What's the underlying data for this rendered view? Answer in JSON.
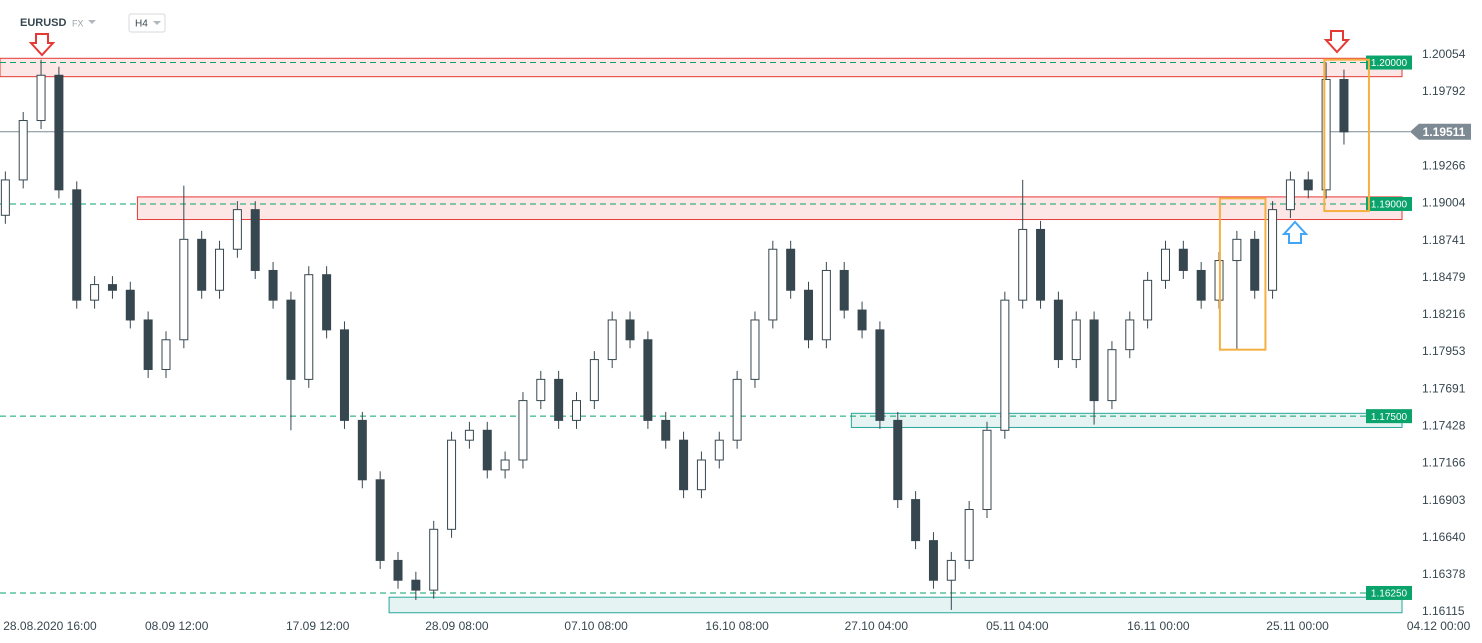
{
  "chart_data": {
    "type": "candlestick",
    "symbol": "EURUSD",
    "market": "FX",
    "timeframe": "H4",
    "open": [
      1.1892,
      1.1917,
      1.1959,
      1.1991,
      1.191,
      1.1832,
      1.1843,
      1.1839,
      1.1818,
      1.1783,
      1.1804,
      1.1875,
      1.1839,
      1.1868,
      1.1896,
      1.1853,
      1.1832,
      1.1776,
      1.185,
      1.1811,
      1.1747,
      1.1705,
      1.1648,
      1.1634,
      1.1627,
      1.167,
      1.1733,
      1.174,
      1.1712,
      1.1719,
      1.1761,
      1.1776,
      1.1747,
      1.1761,
      1.179,
      1.1818,
      1.1804,
      1.1747,
      1.1733,
      1.1698,
      1.1719,
      1.1733,
      1.1776,
      1.1818,
      1.1868,
      1.1839,
      1.1804,
      1.1853,
      1.1825,
      1.1811,
      1.1747,
      1.1691,
      1.1662,
      1.1634,
      1.1648,
      1.1684,
      1.174,
      1.1832,
      1.1882,
      1.1832,
      1.179,
      1.1818,
      1.1761,
      1.1797,
      1.1818,
      1.1846,
      1.1868,
      1.1853,
      1.1832,
      1.186,
      1.1875,
      1.1839,
      1.1896,
      1.1917,
      1.191,
      1.1988
    ],
    "high": [
      1.1923,
      1.1965,
      1.2002,
      1.1997,
      1.1916,
      1.1849,
      1.1849,
      1.1845,
      1.1824,
      1.181,
      1.1913,
      1.1881,
      1.1874,
      1.1902,
      1.1902,
      1.1859,
      1.1838,
      1.1856,
      1.1856,
      1.1817,
      1.1753,
      1.1711,
      1.1654,
      1.164,
      1.1676,
      1.1739,
      1.1746,
      1.1746,
      1.1725,
      1.1767,
      1.1782,
      1.1782,
      1.1767,
      1.1796,
      1.1824,
      1.1824,
      1.181,
      1.1753,
      1.1739,
      1.1725,
      1.1739,
      1.1782,
      1.1824,
      1.1874,
      1.1874,
      1.1845,
      1.1859,
      1.1859,
      1.1831,
      1.1817,
      1.1753,
      1.1697,
      1.1668,
      1.1654,
      1.169,
      1.1746,
      1.1838,
      1.1917,
      1.1888,
      1.1838,
      1.1824,
      1.1824,
      1.1803,
      1.1824,
      1.1852,
      1.1874,
      1.1874,
      1.1859,
      1.1866,
      1.1881,
      1.1881,
      1.1902,
      1.1923,
      1.1923,
      1.2,
      1.1995
    ],
    "low": [
      1.1886,
      1.1911,
      1.1953,
      1.1904,
      1.1826,
      1.1826,
      1.1833,
      1.1812,
      1.1777,
      1.1777,
      1.1798,
      1.1833,
      1.1833,
      1.1862,
      1.1847,
      1.1826,
      1.174,
      1.177,
      1.1805,
      1.1741,
      1.1699,
      1.1642,
      1.1628,
      1.162,
      1.1621,
      1.1664,
      1.1727,
      1.1706,
      1.1706,
      1.1713,
      1.1755,
      1.1741,
      1.1741,
      1.1755,
      1.1784,
      1.1798,
      1.1741,
      1.1727,
      1.1692,
      1.1692,
      1.1713,
      1.1727,
      1.177,
      1.1812,
      1.1833,
      1.1798,
      1.1798,
      1.1819,
      1.1805,
      1.1741,
      1.1685,
      1.1656,
      1.1628,
      1.1613,
      1.1642,
      1.1678,
      1.1734,
      1.1826,
      1.1826,
      1.1784,
      1.1784,
      1.1744,
      1.1755,
      1.1791,
      1.1812,
      1.184,
      1.1847,
      1.1826,
      1.1826,
      1.1797,
      1.1833,
      1.1833,
      1.189,
      1.1904,
      1.1904,
      1.1942
    ],
    "close": [
      1.1917,
      1.1959,
      1.1991,
      1.191,
      1.1832,
      1.1843,
      1.1839,
      1.1818,
      1.1783,
      1.1804,
      1.1875,
      1.1839,
      1.1868,
      1.1896,
      1.1853,
      1.1832,
      1.1776,
      1.185,
      1.1811,
      1.1747,
      1.1705,
      1.1648,
      1.1634,
      1.1627,
      1.167,
      1.1733,
      1.174,
      1.1712,
      1.1719,
      1.1761,
      1.1776,
      1.1747,
      1.1761,
      1.179,
      1.1818,
      1.1804,
      1.1747,
      1.1733,
      1.1698,
      1.1719,
      1.1733,
      1.1776,
      1.1818,
      1.1868,
      1.1839,
      1.1804,
      1.1853,
      1.1825,
      1.1811,
      1.1747,
      1.1691,
      1.1662,
      1.1634,
      1.1648,
      1.1684,
      1.174,
      1.1832,
      1.1882,
      1.1832,
      1.179,
      1.1818,
      1.1761,
      1.1797,
      1.1818,
      1.1846,
      1.1868,
      1.1853,
      1.1832,
      1.186,
      1.1875,
      1.1839,
      1.1896,
      1.1917,
      1.191,
      1.1988,
      1.1951
    ],
    "bull_color": "#ffffff",
    "bear_color": "#37474f",
    "xlim": [
      -0.3,
      78.7
    ],
    "ylim": [
      1.1608,
      1.2023
    ],
    "xticks": [
      {
        "value": 2.5,
        "label": "28.08.2020  16:00"
      },
      {
        "value": 9.6,
        "label": "08.09  12:00"
      },
      {
        "value": 17.5,
        "label": "17.09  12:00"
      },
      {
        "value": 25.3,
        "label": "28.09  08:00"
      },
      {
        "value": 33.1,
        "label": "07.10  08:00"
      },
      {
        "value": 41.0,
        "label": "16.10  08:00"
      },
      {
        "value": 48.8,
        "label": "27.10  04:00"
      },
      {
        "value": 56.7,
        "label": "05.11  04:00"
      },
      {
        "value": 64.6,
        "label": "16.11  00:00"
      },
      {
        "value": 72.4,
        "label": "25.11  00:00"
      },
      {
        "value": 80.3,
        "label": "04.12  00:00"
      }
    ],
    "yticks": [
      1.20054,
      1.19792,
      1.19266,
      1.19004,
      1.18741,
      1.18479,
      1.18216,
      1.17953,
      1.17691,
      1.17428,
      1.17166,
      1.16903,
      {
        "value": 1.1664,
        "label": "1.16640"
      },
      1.16378,
      1.16115
    ],
    "zones": [
      {
        "low": 1.199,
        "high": 1.2003,
        "start": -0.3,
        "color": "#e53935"
      },
      {
        "low": 1.1889,
        "high": 1.1905,
        "start": 7.4,
        "color": "#e53935"
      },
      {
        "low": 1.1742,
        "high": 1.1752,
        "start": 47.4,
        "color": "#26a69a"
      },
      {
        "low": 1.1611,
        "high": 1.1622,
        "start": 21.5,
        "color": "#26a69a"
      }
    ],
    "levels": [
      {
        "value": 1.2,
        "label": "1.20000"
      },
      {
        "value": 1.19,
        "label": "1.19000"
      },
      {
        "value": 1.175,
        "label": "1.17500"
      },
      {
        "value": 1.1625,
        "label": "1.16250"
      }
    ],
    "level_color": "#0aa36b",
    "boxes": [
      {
        "start": 68.05,
        "end": 70.6,
        "low": 1.1797,
        "high": 1.1904
      },
      {
        "start": 73.9,
        "end": 76.4,
        "low": 1.1895,
        "high": 1.2002
      }
    ],
    "box_color": "#f5b041",
    "last_price": 1.19511
  }
}
